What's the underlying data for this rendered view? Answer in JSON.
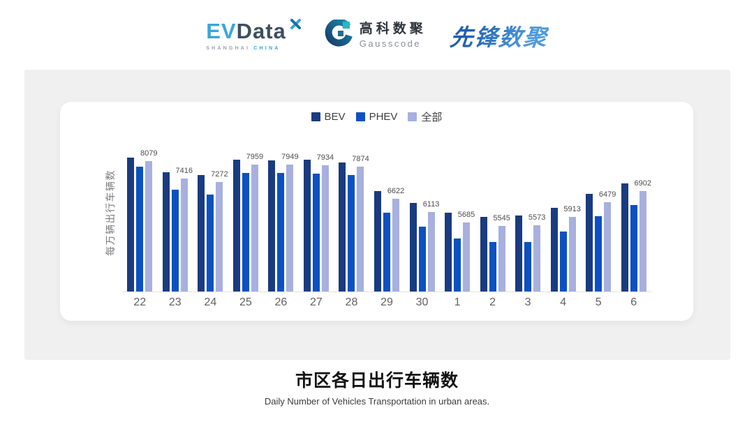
{
  "header": {
    "evdata": {
      "ev": "EV",
      "data": "Data",
      "sub_left": "SHANGHAI",
      "sub_right": "CHINA"
    },
    "gausscode": {
      "cn": "高科数聚",
      "en": "Gausscode"
    },
    "pioneer": {
      "text": "先锋数聚"
    }
  },
  "chart_data": {
    "type": "bar",
    "title": "市区各日出行车辆数",
    "subtitle": "Daily Number of Vehicles Transportation in urban areas.",
    "ylabel": "每万辆出行车辆数",
    "categories": [
      "22",
      "23",
      "24",
      "25",
      "26",
      "27",
      "28",
      "29",
      "30",
      "1",
      "2",
      "3",
      "4",
      "5",
      "6"
    ],
    "series": [
      {
        "name": "BEV",
        "color": "#1A3B80",
        "values": [
          8210,
          7660,
          7550,
          8130,
          8100,
          8130,
          8030,
          6910,
          6460,
          6060,
          5910,
          5960,
          6260,
          6800,
          7220
        ],
        "estimated": true
      },
      {
        "name": "PHEV",
        "color": "#0C51C2",
        "values": [
          7860,
          6970,
          6780,
          7630,
          7610,
          7600,
          7530,
          6080,
          5530,
          5060,
          4940,
          4940,
          5330,
          5930,
          6360
        ],
        "estimated": true
      },
      {
        "name": "全部",
        "color": "#A7B0DE",
        "values": [
          8079,
          7416,
          7272,
          7959,
          7949,
          7934,
          7874,
          6622,
          6113,
          5685,
          5545,
          5573,
          5913,
          6479,
          6902
        ],
        "data_labels": true
      }
    ],
    "ylim": [
      3000,
      8300
    ],
    "legend_position": "top",
    "grid": false,
    "note": "Data labels shown only for 全部 series; BEV/PHEV values estimated from bar heights; y-axis baseline implied ≈3000, no y tick labels shown."
  },
  "footer": {
    "title": "市区各日出行车辆数",
    "subtitle": "Daily Number of Vehicles Transportation in urban areas."
  }
}
